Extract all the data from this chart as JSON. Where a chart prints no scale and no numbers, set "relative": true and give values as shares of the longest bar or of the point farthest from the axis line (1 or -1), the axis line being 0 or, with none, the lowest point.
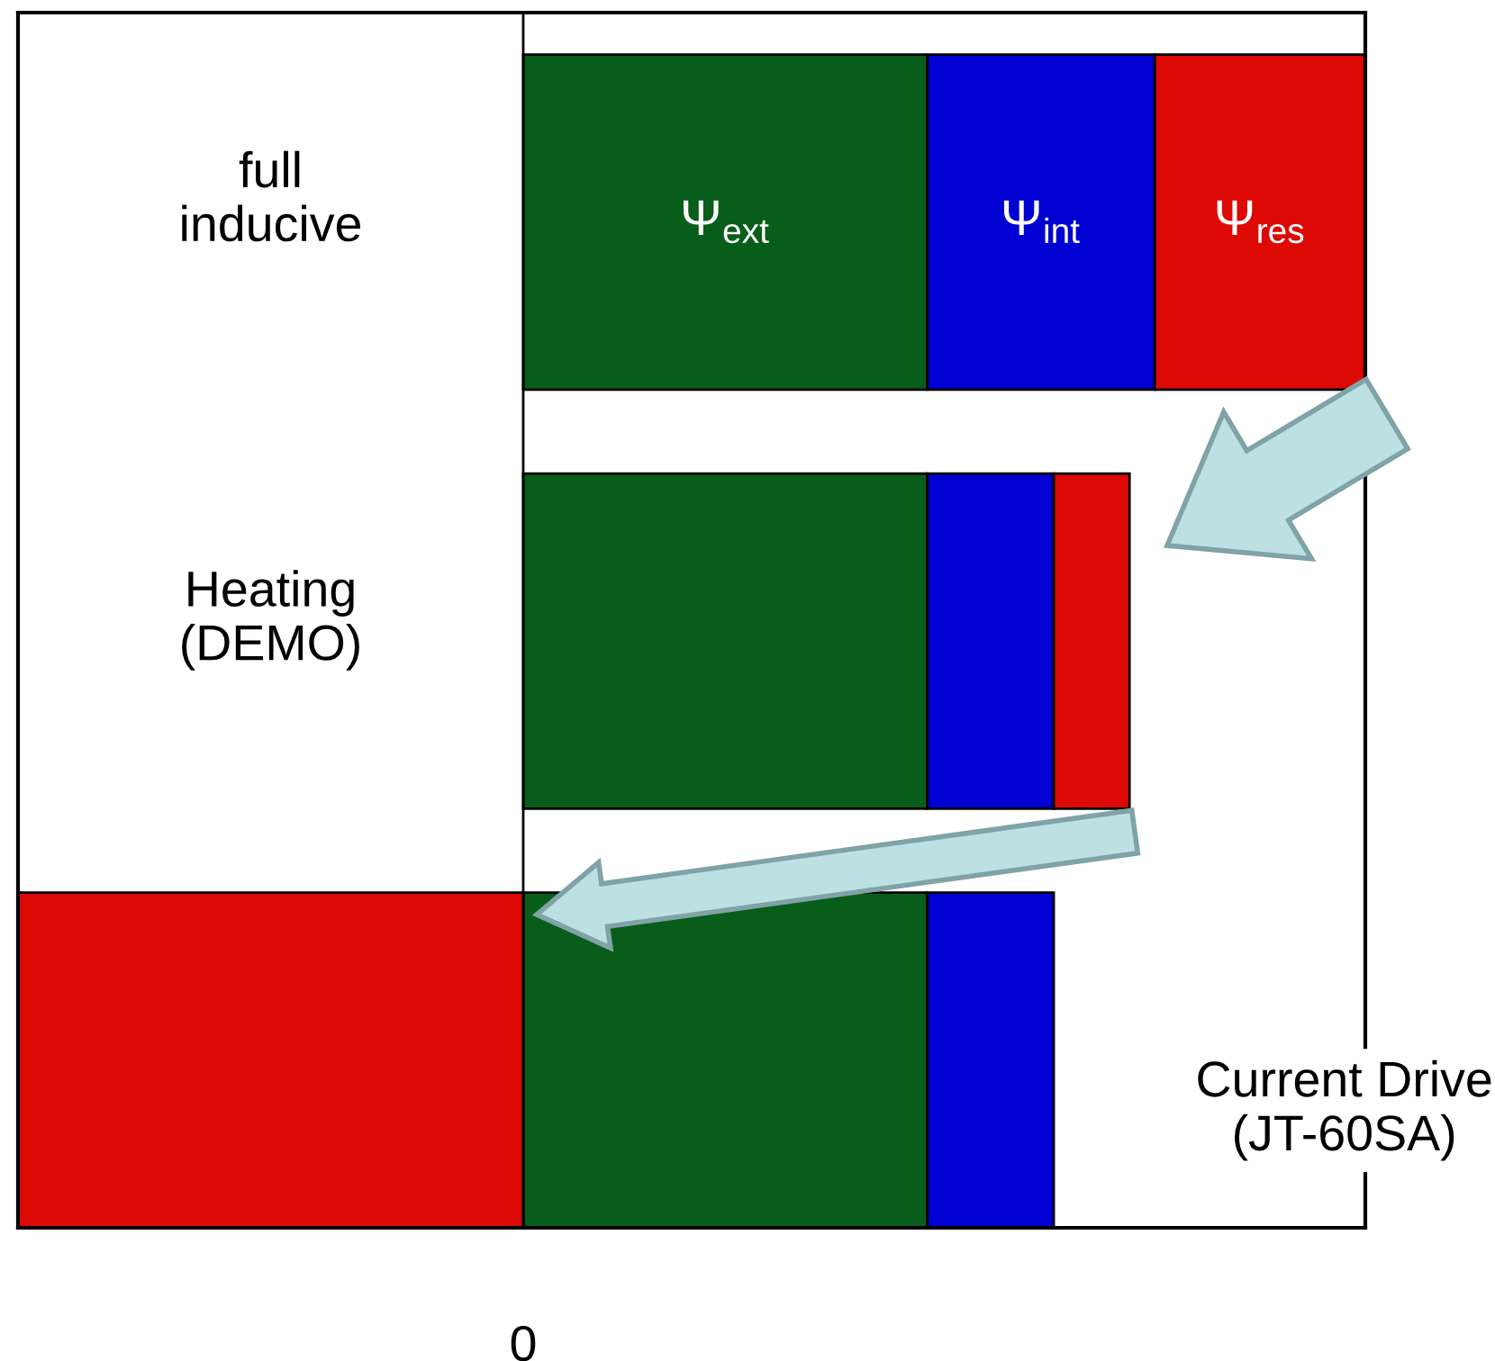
{
  "chart_data": {
    "type": "bar",
    "orientation": "horizontal",
    "stacked": true,
    "relative": true,
    "categories": [
      "full\ninducive",
      "Heating\n(DEMO)",
      "Current Drive\n(JT-60SA)"
    ],
    "series": [
      {
        "name": "Ψ$_{ext}$",
        "color": "#085d1a",
        "values": [
          0.48,
          0.48,
          0.48
        ]
      },
      {
        "name": "Ψ$_{int}$",
        "color": "#0000d2",
        "values": [
          0.27,
          0.15,
          0.15
        ]
      },
      {
        "name": "Ψ$_{res}$",
        "color": "#dc0905",
        "values": [
          0.25,
          0.09,
          -0.6
        ]
      }
    ],
    "annotations": [
      "0"
    ]
  }
}
